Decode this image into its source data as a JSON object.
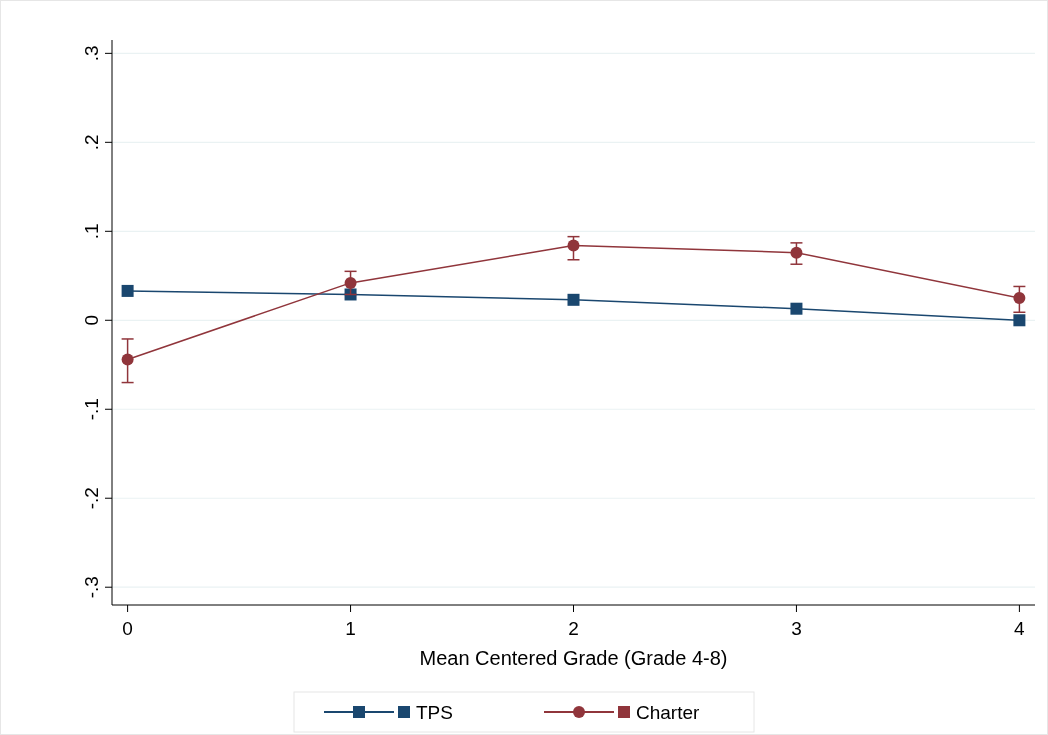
{
  "chart_data": {
    "type": "line",
    "xlabel": "Mean Centered Grade (Grade 4-8)",
    "x": [
      0,
      1,
      2,
      3,
      4
    ],
    "series": [
      {
        "name": "TPS",
        "color": "#1a476f",
        "marker": "square",
        "values": [
          0.033,
          0.029,
          0.023,
          0.013,
          0.0
        ]
      },
      {
        "name": "Charter",
        "color": "#90353b",
        "marker": "circle",
        "values": [
          -0.044,
          0.042,
          0.084,
          0.076,
          0.025
        ],
        "errors": [
          [
            -0.07,
            -0.021
          ],
          [
            0.029,
            0.055
          ],
          [
            0.068,
            0.094
          ],
          [
            0.063,
            0.087
          ],
          [
            0.009,
            0.038
          ]
        ]
      }
    ],
    "xlim": [
      -0.07,
      4.07
    ],
    "xticks": [
      0,
      1,
      2,
      3,
      4
    ],
    "ylim": [
      -0.32,
      0.315
    ],
    "yticks": [
      {
        "value": -0.3,
        "label": "-.3"
      },
      {
        "value": -0.2,
        "label": "-.2"
      },
      {
        "value": -0.1,
        "label": "-.1"
      },
      {
        "value": 0,
        "label": "0"
      },
      {
        "value": 0.1,
        "label": ".1"
      },
      {
        "value": 0.2,
        "label": ".2"
      },
      {
        "value": 0.3,
        "label": ".3"
      }
    ],
    "grid": "y",
    "legend": "bottom",
    "line_style": "solid"
  }
}
